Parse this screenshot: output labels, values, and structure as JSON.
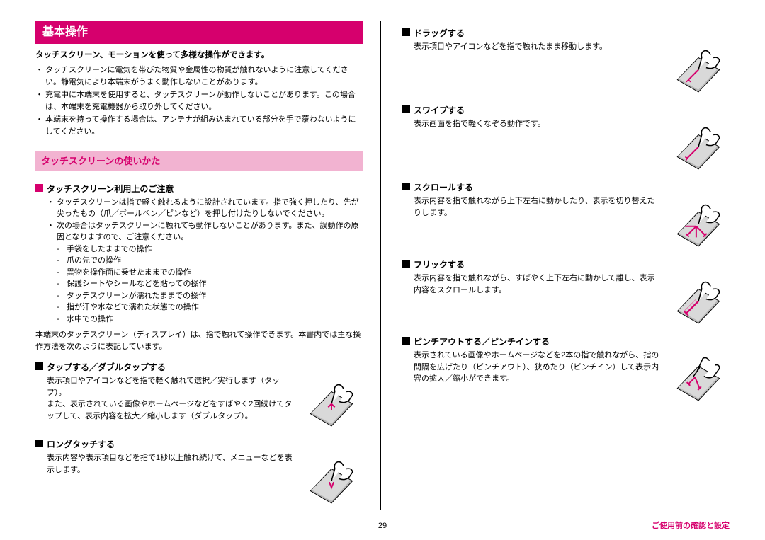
{
  "colors": {
    "brand": "#d6006d",
    "subheader_bg": "#f2b3d1",
    "text": "#000000",
    "page_bg": "#ffffff"
  },
  "title": "基本操作",
  "lead": "タッチスクリーン、モーションを使って多様な操作ができます。",
  "intro_bullets": [
    "タッチスクリーンに電気を帯びた物質や金属性の物質が触れないように注意してください。静電気により本端末がうまく動作しないことがあります。",
    "充電中に本端末を使用すると、タッチスクリーンが動作しないことがあります。この場合は、本端末を充電機器から取り外してください。",
    "本端末を持って操作する場合は、アンテナが組み込まれている部分を手で覆わないようにしてください。"
  ],
  "subheader": "タッチスクリーンの使いかた",
  "caution_heading": "タッチスクリーン利用上のご注意",
  "caution_bullets": [
    "タッチスクリーンは指で軽く触れるように設計されています。指で強く押したり、先が尖ったもの（爪／ボールペン／ピンなど）を押し付けたりしないでください。",
    "次の場合はタッチスクリーンに触れても動作しないことがあります。また、誤動作の原因となりますので、ご注意ください。"
  ],
  "dash_items": [
    "手袋をしたままでの操作",
    "爪の先での操作",
    "異物を操作面に乗せたままでの操作",
    "保護シートやシールなどを貼っての操作",
    "タッチスクリーンが濡れたままでの操作",
    "指が汗や水などで濡れた状態での操作",
    "水中での操作"
  ],
  "note": "本端末のタッチスクリーン（ディスプレイ）は、指で触れて操作できます。本書内では主な操作方法を次のように表記しています。",
  "gestures_left": [
    {
      "heading": "タップする／ダブルタップする",
      "text": "表示項目やアイコンなどを指で軽く触れて選択／実行します（タップ）。\nまた、表示されている画像やホームページなどをすばやく2回続けてタップして、表示内容を拡大／縮小します（ダブルタップ）。",
      "icon": "tap"
    },
    {
      "heading": "ロングタッチする",
      "text": "表示内容や表示項目などを指で1秒以上触れ続けて、メニューなどを表示します。",
      "icon": "longtouch"
    }
  ],
  "gestures_right": [
    {
      "heading": "ドラッグする",
      "text": "表示項目やアイコンなどを指で触れたまま移動します。",
      "icon": "drag"
    },
    {
      "heading": "スワイプする",
      "text": "表示画面を指で軽くなぞる動作です。",
      "icon": "swipe"
    },
    {
      "heading": "スクロールする",
      "text": "表示内容を指で触れながら上下左右に動かしたり、表示を切り替えたりします。",
      "icon": "scroll"
    },
    {
      "heading": "フリックする",
      "text": "表示内容を指で触れながら、すばやく上下左右に動かして離し、表示内容をスクロールします。",
      "icon": "flick"
    },
    {
      "heading": "ピンチアウトする／ピンチインする",
      "text": "表示されている画像やホームページなどを2本の指で触れながら、指の間隔を広げたり（ピンチアウト）、狭めたり（ピンチイン）して表示内容の拡大／縮小ができます。",
      "icon": "pinch"
    }
  ],
  "page_number": "29",
  "footer": "ご使用前の確認と設定"
}
